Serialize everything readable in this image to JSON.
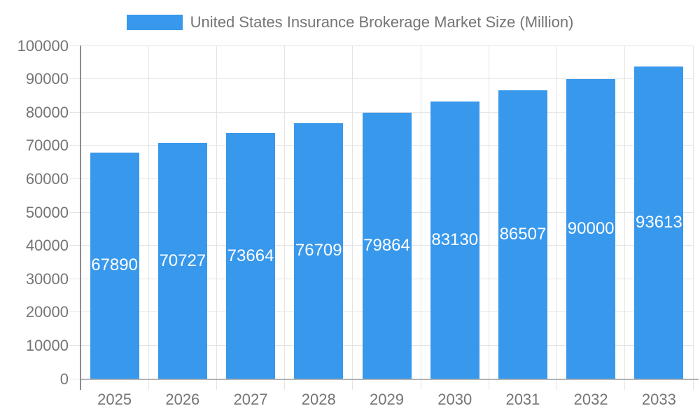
{
  "chart_data": {
    "type": "bar",
    "title": "United States Insurance Brokerage Market Size (Million)",
    "categories": [
      "2025",
      "2026",
      "2027",
      "2028",
      "2029",
      "2030",
      "2031",
      "2032",
      "2033"
    ],
    "values": [
      67890,
      70727,
      73664,
      76709,
      79864,
      83130,
      86507,
      90000,
      93613
    ],
    "xlabel": "",
    "ylabel": "",
    "ylim": [
      0,
      100000
    ],
    "yticks": [
      0,
      10000,
      20000,
      30000,
      40000,
      50000,
      60000,
      70000,
      80000,
      90000,
      100000
    ],
    "grid": true,
    "legend_position": "top",
    "bar_value_labels_shown": true
  },
  "colors": {
    "bar": "#3898EC",
    "grid": "#E4E4E4",
    "zero_line": "#B3B3B3",
    "y_axis_line": "#8C8C8C",
    "axis_text": "#757575",
    "bar_label_text": "#FFFFFF"
  }
}
